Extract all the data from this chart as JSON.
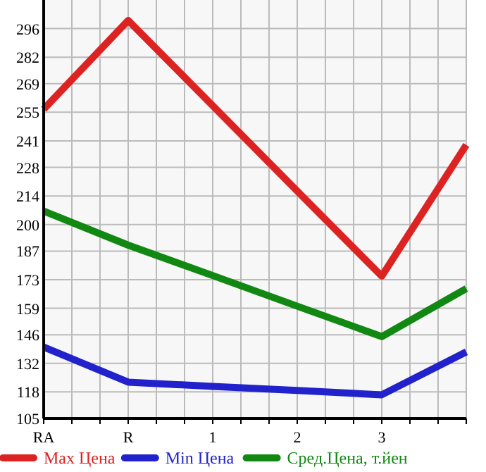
{
  "chart_data": {
    "type": "line",
    "categories": [
      "RA",
      "R",
      "1",
      "2",
      "3",
      null
    ],
    "ylim": [
      105,
      310
    ],
    "yticks": [
      105,
      118,
      132,
      146,
      159,
      173,
      187,
      200,
      214,
      228,
      241,
      255,
      269,
      282,
      296
    ],
    "series": [
      {
        "name": "Max Цена",
        "color": "#dd2222",
        "values": [
          256.5,
          300,
          258.2,
          216.4,
          174.7,
          239
        ]
      },
      {
        "name": "Min Цена",
        "color": "#2222cc",
        "values": [
          140,
          122.8,
          120.7,
          118.7,
          116.6,
          137.6
        ]
      },
      {
        "name": "Сред.Цена, т.йен",
        "color": "#118811",
        "values": [
          206.6,
          189.9,
          175,
          160,
          145.1,
          168.6
        ]
      }
    ],
    "grid": true,
    "legend": "bottom",
    "marker": "none",
    "line_style": "solid"
  }
}
